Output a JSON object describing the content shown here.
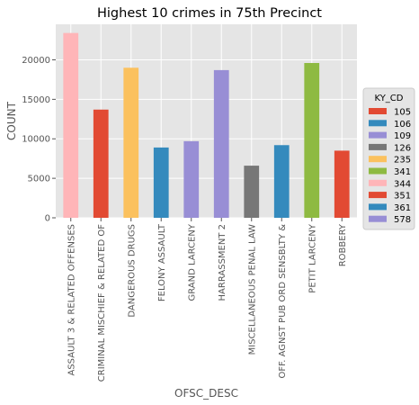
{
  "chart_data": {
    "type": "bar",
    "title": "Highest 10 crimes in 75th Precinct",
    "xlabel": "OFSC_DESC",
    "ylabel": "COUNT",
    "ylim": [
      0,
      24500
    ],
    "yticks": [
      0,
      5000,
      10000,
      15000,
      20000
    ],
    "grid": true,
    "legend_position": "right",
    "categories": [
      "ASSAULT 3 & RELATED OFFENSES",
      "CRIMINAL MISCHIEF & RELATED OF",
      "DANGEROUS DRUGS",
      "FELONY ASSAULT",
      "GRAND LARCENY",
      "HARRASSMENT 2",
      "MISCELLANEOUS PENAL LAW",
      "OFF. AGNST PUB ORD SENSBLTY &",
      "PETIT LARCENY",
      "ROBBERY"
    ],
    "bars": [
      {
        "category": "ASSAULT 3 & RELATED OFFENSES",
        "value": 23400,
        "ky_cd": "344"
      },
      {
        "category": "CRIMINAL MISCHIEF & RELATED OF",
        "value": 13700,
        "ky_cd": "351"
      },
      {
        "category": "DANGEROUS DRUGS",
        "value": 19000,
        "ky_cd": "235"
      },
      {
        "category": "FELONY ASSAULT",
        "value": 8900,
        "ky_cd": "106"
      },
      {
        "category": "GRAND LARCENY",
        "value": 9700,
        "ky_cd": "109"
      },
      {
        "category": "HARRASSMENT 2",
        "value": 18700,
        "ky_cd": "578"
      },
      {
        "category": "MISCELLANEOUS PENAL LAW",
        "value": 6600,
        "ky_cd": "126"
      },
      {
        "category": "OFF. AGNST PUB ORD SENSBLTY &",
        "value": 9200,
        "ky_cd": "361"
      },
      {
        "category": "PETIT LARCENY",
        "value": 19600,
        "ky_cd": "341"
      },
      {
        "category": "ROBBERY",
        "value": 8500,
        "ky_cd": "105"
      }
    ],
    "legend": {
      "title": "KY_CD",
      "entries": [
        {
          "label": "105",
          "color": "#E24A33"
        },
        {
          "label": "106",
          "color": "#348ABD"
        },
        {
          "label": "109",
          "color": "#988ED5"
        },
        {
          "label": "126",
          "color": "#777777"
        },
        {
          "label": "235",
          "color": "#FBC15E"
        },
        {
          "label": "341",
          "color": "#8EBA42"
        },
        {
          "label": "344",
          "color": "#FFB5B8"
        },
        {
          "label": "351",
          "color": "#E24A33"
        },
        {
          "label": "361",
          "color": "#348ABD"
        },
        {
          "label": "578",
          "color": "#988ED5"
        }
      ]
    },
    "colors": {
      "plot_background": "#E5E5E5",
      "grid": "#FFFFFF"
    }
  }
}
